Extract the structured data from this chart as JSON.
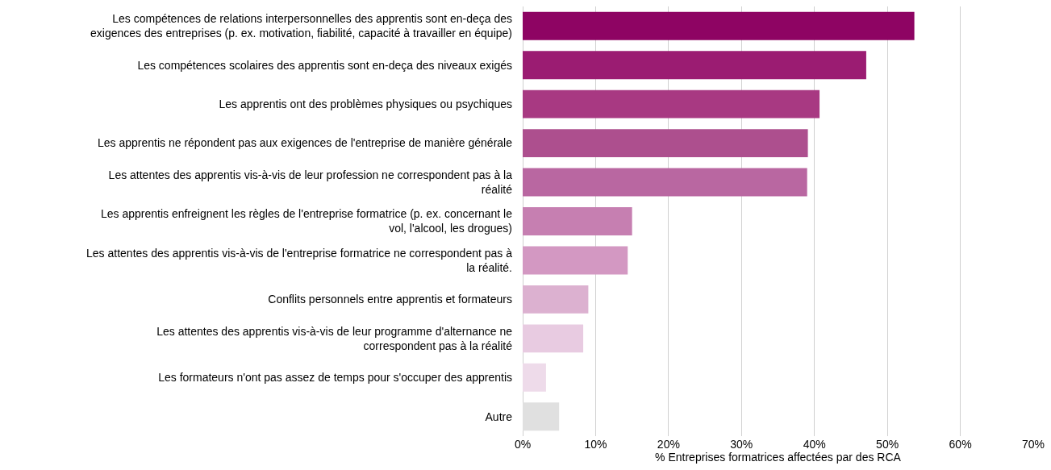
{
  "chart_data": {
    "type": "bar",
    "orientation": "horizontal",
    "xlabel": "% Entreprises formatrices affectées par des RCA",
    "categories": [
      "Les compétences de relations interpersonnelles des apprentis sont en-deça des\nexigences des entreprises (p. ex. motivation, fiabilité, capacité à travailler en équipe)",
      "Les compétences scolaires des apprentis sont en-deça des niveaux exigés",
      "Les apprentis ont des problèmes physiques ou psychiques",
      "Les apprentis ne répondent pas aux exigences de l'entreprise de manière générale",
      "Les attentes des apprentis vis-à-vis de leur profession ne correspondent pas à la\nréalité",
      "Les apprentis enfreignent les règles de l'entreprise formatrice (p. ex. concernant le\nvol, l'alcool, les drogues)",
      "Les attentes des apprentis vis-à-vis de l'entreprise formatrice ne correspondent pas à\nla réalité.",
      "Conflits personnels entre apprentis et formateurs",
      "Les attentes des apprentis vis-à-vis de leur programme d'alternance ne\ncorrespondent pas à la réalité",
      "Les formateurs n'ont pas assez de temps pour s'occuper des apprentis",
      "Autre"
    ],
    "values": [
      53.7,
      47.1,
      40.7,
      39.1,
      39.0,
      15.0,
      14.4,
      9.0,
      8.3,
      3.2,
      5.0
    ],
    "colors": [
      "#8e0463",
      "#9b1c72",
      "#a83982",
      "#ad4f8e",
      "#b967a1",
      "#c67fb1",
      "#d398c2",
      "#dcb1d0",
      "#e8cbe1",
      "#eedbea",
      "#e0e0e0"
    ],
    "xlim": [
      0,
      70
    ],
    "xticks": [
      {
        "value": 0,
        "label": "0%"
      },
      {
        "value": 10,
        "label": "10%"
      },
      {
        "value": 20,
        "label": "20%"
      },
      {
        "value": 30,
        "label": "30%"
      },
      {
        "value": 40,
        "label": "40%"
      },
      {
        "value": 50,
        "label": "50%"
      },
      {
        "value": 60,
        "label": "60%"
      },
      {
        "value": 70,
        "label": "70%"
      }
    ],
    "grid": "x"
  }
}
